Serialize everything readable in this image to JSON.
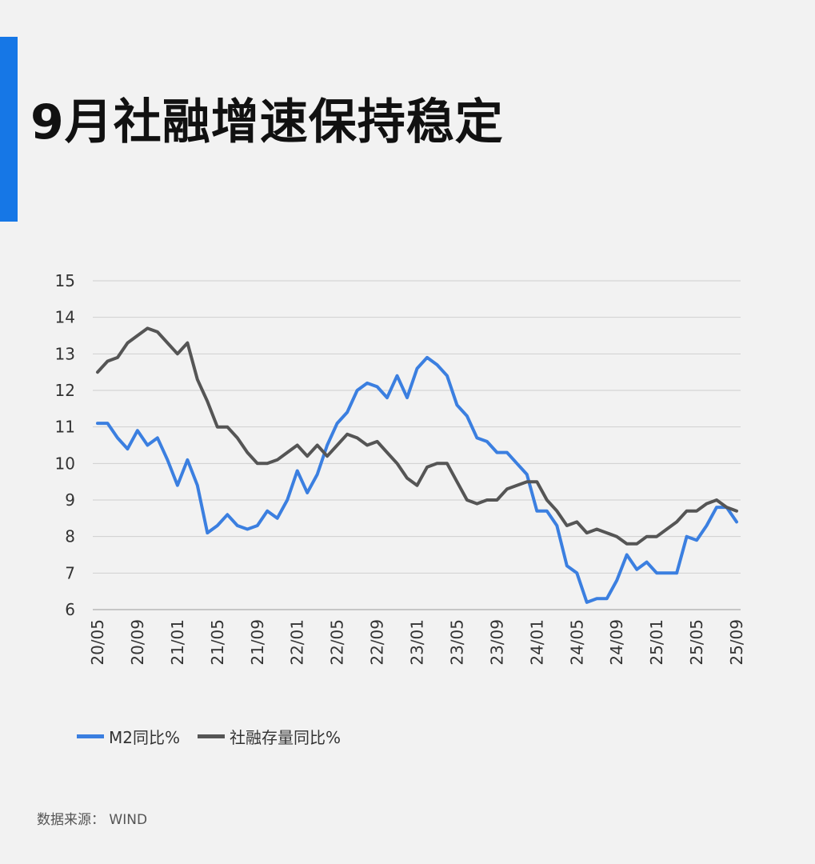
{
  "title": "9月社融增速保持稳定",
  "source_text": "数据来源： WIND",
  "colors": {
    "accent": "#1677e6",
    "m2": "#3b7fe0",
    "sf": "#555555",
    "grid": "#cfcfcf"
  },
  "chart_data": {
    "type": "line",
    "ylim": [
      6,
      15
    ],
    "yticks": [
      6,
      7,
      8,
      9,
      10,
      11,
      12,
      13,
      14,
      15
    ],
    "xticks": [
      "20/05",
      "20/09",
      "21/01",
      "21/05",
      "21/09",
      "22/01",
      "22/05",
      "22/09",
      "23/01",
      "23/05",
      "23/09",
      "24/01",
      "24/05",
      "24/09",
      "25/01",
      "25/05",
      "25/09"
    ],
    "x": [
      "20/05",
      "20/06",
      "20/07",
      "20/08",
      "20/09",
      "20/10",
      "20/11",
      "20/12",
      "21/01",
      "21/02",
      "21/03",
      "21/04",
      "21/05",
      "21/06",
      "21/07",
      "21/08",
      "21/09",
      "21/10",
      "21/11",
      "21/12",
      "22/01",
      "22/02",
      "22/03",
      "22/04",
      "22/05",
      "22/06",
      "22/07",
      "22/08",
      "22/09",
      "22/10",
      "22/11",
      "22/12",
      "23/01",
      "23/02",
      "23/03",
      "23/04",
      "23/05",
      "23/06",
      "23/07",
      "23/08",
      "23/09",
      "23/10",
      "23/11",
      "23/12",
      "24/01",
      "24/02",
      "24/03",
      "24/04",
      "24/05",
      "24/06",
      "24/07",
      "24/08",
      "24/09",
      "24/10",
      "24/11",
      "24/12",
      "25/01",
      "25/02",
      "25/03",
      "25/04",
      "25/05",
      "25/06",
      "25/07",
      "25/08",
      "25/09"
    ],
    "series": [
      {
        "name": "M2同比%",
        "color": "#3b7fe0",
        "values": [
          11.1,
          11.1,
          10.7,
          10.4,
          10.9,
          10.5,
          10.7,
          10.1,
          9.4,
          10.1,
          9.4,
          8.1,
          8.3,
          8.6,
          8.3,
          8.2,
          8.3,
          8.7,
          8.5,
          9.0,
          9.8,
          9.2,
          9.7,
          10.5,
          11.1,
          11.4,
          12.0,
          12.2,
          12.1,
          11.8,
          12.4,
          11.8,
          12.6,
          12.9,
          12.7,
          12.4,
          11.6,
          11.3,
          10.7,
          10.6,
          10.3,
          10.3,
          10.0,
          9.7,
          8.7,
          8.7,
          8.3,
          7.2,
          7.0,
          6.2,
          6.3,
          6.3,
          6.8,
          7.5,
          7.1,
          7.3,
          7.0,
          7.0,
          7.0,
          8.0,
          7.9,
          8.3,
          8.8,
          8.8,
          8.4
        ]
      },
      {
        "name": "社融存量同比%",
        "color": "#555555",
        "values": [
          12.5,
          12.8,
          12.9,
          13.3,
          13.5,
          13.7,
          13.6,
          13.3,
          13.0,
          13.3,
          12.3,
          11.7,
          11.0,
          11.0,
          10.7,
          10.3,
          10.0,
          10.0,
          10.1,
          10.3,
          10.5,
          10.2,
          10.5,
          10.2,
          10.5,
          10.8,
          10.7,
          10.5,
          10.6,
          10.3,
          10.0,
          9.6,
          9.4,
          9.9,
          10.0,
          10.0,
          9.5,
          9.0,
          8.9,
          9.0,
          9.0,
          9.3,
          9.4,
          9.5,
          9.5,
          9.0,
          8.7,
          8.3,
          8.4,
          8.1,
          8.2,
          8.1,
          8.0,
          7.8,
          7.8,
          8.0,
          8.0,
          8.2,
          8.4,
          8.7,
          8.7,
          8.9,
          9.0,
          8.8,
          8.7
        ]
      }
    ],
    "grid": true,
    "legend_position": "bottom-left"
  }
}
